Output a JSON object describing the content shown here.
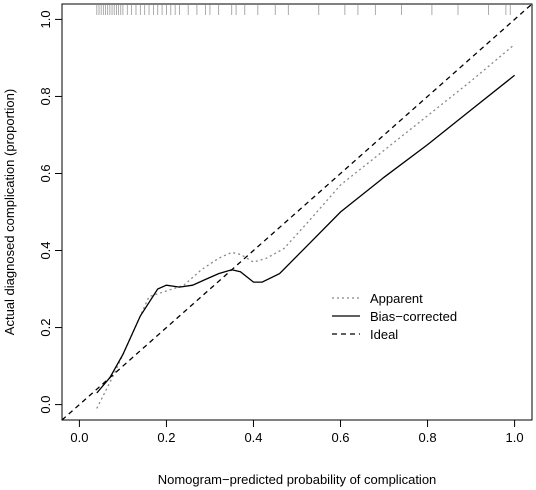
{
  "chart_data": {
    "type": "line",
    "title": "",
    "xlabel": "Nomogram−predicted probability of complication",
    "ylabel": "Actual diagnosed complication (proportion)",
    "xlim": [
      -0.04,
      1.04
    ],
    "ylim": [
      -0.04,
      1.04
    ],
    "x_ticks": [
      0.0,
      0.2,
      0.4,
      0.6,
      0.8,
      1.0
    ],
    "x_tick_labels": [
      "0.0",
      "0.2",
      "0.4",
      "0.6",
      "0.8",
      "1.0"
    ],
    "y_ticks": [
      0.0,
      0.2,
      0.4,
      0.6,
      0.8,
      1.0
    ],
    "y_tick_labels": [
      "0.0",
      "0.2",
      "0.4",
      "0.6",
      "0.8",
      "1.0"
    ],
    "grid": false,
    "legend_position": "lower-right",
    "legend": [
      "Apparent",
      "Bias−corrected",
      "Ideal"
    ],
    "series": [
      {
        "name": "Apparent",
        "style": "dotted",
        "color": "#888888",
        "x": [
          0.04,
          0.08,
          0.12,
          0.16,
          0.2,
          0.24,
          0.28,
          0.32,
          0.35,
          0.37,
          0.4,
          0.43,
          0.47,
          0.53,
          0.6,
          0.7,
          0.8,
          0.9,
          1.0
        ],
        "y": [
          -0.01,
          0.08,
          0.18,
          0.28,
          0.295,
          0.31,
          0.35,
          0.38,
          0.395,
          0.39,
          0.37,
          0.38,
          0.405,
          0.48,
          0.57,
          0.66,
          0.75,
          0.84,
          0.935
        ]
      },
      {
        "name": "Bias−corrected",
        "style": "solid",
        "color": "#000000",
        "x": [
          0.04,
          0.07,
          0.1,
          0.14,
          0.18,
          0.2,
          0.23,
          0.26,
          0.29,
          0.32,
          0.35,
          0.37,
          0.4,
          0.42,
          0.46,
          0.53,
          0.6,
          0.7,
          0.8,
          0.9,
          1.0
        ],
        "y": [
          0.03,
          0.07,
          0.13,
          0.23,
          0.3,
          0.31,
          0.305,
          0.31,
          0.325,
          0.34,
          0.35,
          0.345,
          0.318,
          0.318,
          0.34,
          0.42,
          0.5,
          0.59,
          0.675,
          0.765,
          0.855
        ]
      },
      {
        "name": "Ideal",
        "style": "dashed",
        "color": "#000000",
        "x": [
          -0.04,
          1.04
        ],
        "y": [
          -0.04,
          1.04
        ]
      }
    ],
    "rug_x": [
      0.04,
      0.045,
      0.05,
      0.055,
      0.06,
      0.065,
      0.07,
      0.075,
      0.08,
      0.085,
      0.09,
      0.095,
      0.1,
      0.11,
      0.12,
      0.13,
      0.14,
      0.15,
      0.16,
      0.17,
      0.18,
      0.19,
      0.2,
      0.21,
      0.22,
      0.23,
      0.25,
      0.27,
      0.29,
      0.3,
      0.32,
      0.35,
      0.36,
      0.38,
      0.41,
      0.45,
      0.48,
      0.55,
      0.61,
      0.64,
      0.68,
      0.74,
      0.81,
      0.87,
      0.94,
      0.98,
      0.99
    ]
  }
}
